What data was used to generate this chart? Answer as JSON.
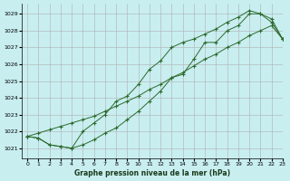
{
  "xlabel": "Graphe pression niveau de la mer (hPa)",
  "background_color": "#c8eef0",
  "grid_color": "#b0b0b0",
  "line_color": "#2d6a2d",
  "xlim": [
    -0.5,
    23
  ],
  "ylim": [
    1020.4,
    1029.6
  ],
  "yticks": [
    1021,
    1022,
    1023,
    1024,
    1025,
    1026,
    1027,
    1028,
    1029
  ],
  "xticks": [
    0,
    1,
    2,
    3,
    4,
    5,
    6,
    7,
    8,
    9,
    10,
    11,
    12,
    13,
    14,
    15,
    16,
    17,
    18,
    19,
    20,
    21,
    22,
    23
  ],
  "hours": [
    0,
    1,
    2,
    3,
    4,
    5,
    6,
    7,
    8,
    9,
    10,
    11,
    12,
    13,
    14,
    15,
    16,
    17,
    18,
    19,
    20,
    21,
    22,
    23
  ],
  "line_upper": [
    1021.7,
    1021.6,
    1021.2,
    1021.1,
    1021.0,
    1022.0,
    1022.5,
    1023.0,
    1023.8,
    1024.1,
    1024.8,
    1025.7,
    1026.2,
    1027.0,
    1027.3,
    1027.5,
    1027.8,
    1028.1,
    1028.5,
    1028.8,
    1029.2,
    1029.0,
    1028.5,
    1027.5
  ],
  "line_lower": [
    1021.7,
    1021.6,
    1021.2,
    1021.1,
    1021.0,
    1021.2,
    1021.5,
    1021.9,
    1022.2,
    1022.7,
    1023.2,
    1023.8,
    1024.4,
    1025.2,
    1025.4,
    1026.3,
    1027.3,
    1027.3,
    1028.0,
    1028.3,
    1029.0,
    1029.0,
    1028.7,
    1027.5
  ],
  "line_straight": [
    1021.7,
    1021.9,
    1022.1,
    1022.3,
    1022.5,
    1022.7,
    1022.9,
    1023.2,
    1023.5,
    1023.8,
    1024.1,
    1024.5,
    1024.8,
    1025.2,
    1025.5,
    1025.9,
    1026.3,
    1026.6,
    1027.0,
    1027.3,
    1027.7,
    1028.0,
    1028.3,
    1027.5
  ]
}
